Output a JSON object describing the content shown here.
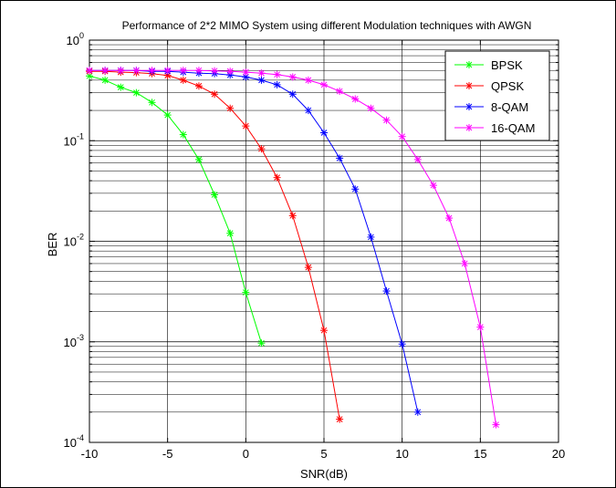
{
  "chart_data": {
    "type": "line",
    "title": "Performance of 2*2 MIMO System using different Modulation techniques with AWGN",
    "xlabel": "SNR(dB)",
    "ylabel": "BER",
    "xlim": [
      -10,
      20
    ],
    "ylim": [
      0.0001,
      1
    ],
    "yscale": "log",
    "grid": true,
    "legend_position": "top-right",
    "x_ticks": [
      "-10",
      "-5",
      "0",
      "5",
      "10",
      "15",
      "20"
    ],
    "y_ticks": [
      {
        "base": "10",
        "exp": "-4"
      },
      {
        "base": "10",
        "exp": "-3"
      },
      {
        "base": "10",
        "exp": "-2"
      },
      {
        "base": "10",
        "exp": "-1"
      },
      {
        "base": "10",
        "exp": "0"
      }
    ],
    "series": [
      {
        "name": "BPSK",
        "color": "#00ff00",
        "marker": "asterisk",
        "x": [
          -10,
          -9,
          -8,
          -7,
          -6,
          -5,
          -4,
          -3,
          -2,
          -1,
          0,
          1
        ],
        "y": [
          0.44,
          0.4,
          0.34,
          0.3,
          0.24,
          0.18,
          0.115,
          0.065,
          0.029,
          0.012,
          0.0031,
          0.00097
        ]
      },
      {
        "name": "QPSK",
        "color": "#ff0000",
        "marker": "asterisk",
        "x": [
          -10,
          -9,
          -8,
          -7,
          -6,
          -5,
          -4,
          -3,
          -2,
          -1,
          0,
          1,
          2,
          3,
          4,
          5,
          6
        ],
        "y": [
          0.49,
          0.49,
          0.48,
          0.475,
          0.465,
          0.445,
          0.4,
          0.35,
          0.29,
          0.21,
          0.14,
          0.083,
          0.043,
          0.018,
          0.0055,
          0.0013,
          0.00017
        ]
      },
      {
        "name": "8-QAM",
        "color": "#0000ff",
        "marker": "asterisk",
        "x": [
          -10,
          -9,
          -8,
          -7,
          -6,
          -5,
          -4,
          -3,
          -2,
          -1,
          0,
          1,
          2,
          3,
          4,
          5,
          6,
          7,
          8,
          9,
          10,
          11
        ],
        "y": [
          0.5,
          0.5,
          0.5,
          0.5,
          0.49,
          0.49,
          0.48,
          0.47,
          0.465,
          0.45,
          0.43,
          0.4,
          0.36,
          0.29,
          0.2,
          0.12,
          0.067,
          0.033,
          0.011,
          0.0032,
          0.00095,
          0.0002
        ]
      },
      {
        "name": "16-QAM",
        "color": "#ff00ff",
        "marker": "asterisk",
        "x": [
          -10,
          -9,
          -8,
          -7,
          -6,
          -5,
          -4,
          -3,
          -2,
          -1,
          0,
          1,
          2,
          3,
          4,
          5,
          6,
          7,
          8,
          9,
          10,
          11,
          12,
          13,
          14,
          15,
          16
        ],
        "y": [
          0.5,
          0.5,
          0.5,
          0.5,
          0.5,
          0.5,
          0.5,
          0.5,
          0.495,
          0.49,
          0.48,
          0.47,
          0.455,
          0.43,
          0.4,
          0.36,
          0.31,
          0.26,
          0.21,
          0.16,
          0.11,
          0.065,
          0.036,
          0.017,
          0.006,
          0.0014,
          0.00015
        ]
      }
    ]
  }
}
